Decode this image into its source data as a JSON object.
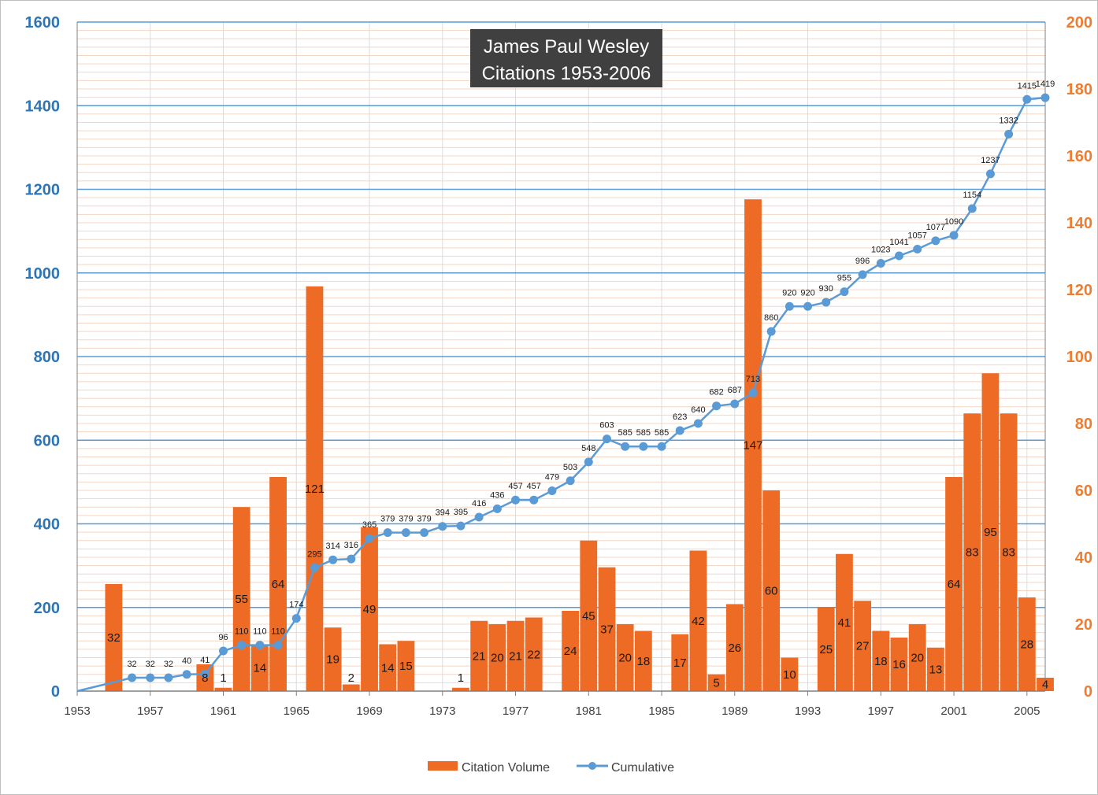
{
  "chart_data": {
    "type": "bar+line",
    "title_lines": [
      "James Paul Wesley",
      "Citations 1953-2006"
    ],
    "x": [
      1953,
      1954,
      1955,
      1956,
      1957,
      1958,
      1959,
      1960,
      1961,
      1962,
      1963,
      1964,
      1965,
      1966,
      1967,
      1968,
      1969,
      1970,
      1971,
      1972,
      1973,
      1974,
      1975,
      1976,
      1977,
      1978,
      1979,
      1980,
      1981,
      1982,
      1983,
      1984,
      1985,
      1986,
      1987,
      1988,
      1989,
      1990,
      1991,
      1992,
      1993,
      1994,
      1995,
      1996,
      1997,
      1998,
      1999,
      2000,
      2001,
      2002,
      2003,
      2004,
      2005,
      2006
    ],
    "xticks": [
      1953,
      1957,
      1961,
      1965,
      1969,
      1973,
      1977,
      1981,
      1985,
      1989,
      1993,
      1997,
      2001,
      2005
    ],
    "left_axis": {
      "ylim": [
        0,
        1600
      ],
      "ticks": [
        0,
        200,
        400,
        600,
        800,
        1000,
        1200,
        1400,
        1600
      ],
      "color": "#2e75b6"
    },
    "right_axis": {
      "ylim": [
        0,
        200
      ],
      "ticks": [
        0,
        20,
        40,
        60,
        80,
        100,
        120,
        140,
        160,
        180,
        200
      ],
      "color": "#ed7d31"
    },
    "grid": true,
    "series": [
      {
        "name": "Citation Volume",
        "kind": "bar",
        "axis": "right",
        "color": "#ed6b25",
        "values": [
          0,
          0,
          32,
          0,
          0,
          0,
          0,
          8,
          1,
          55,
          14,
          64,
          0,
          121,
          19,
          2,
          49,
          14,
          15,
          0,
          0,
          1,
          21,
          20,
          21,
          22,
          0,
          24,
          45,
          37,
          20,
          18,
          0,
          17,
          42,
          5,
          26,
          147,
          60,
          10,
          0,
          25,
          41,
          27,
          18,
          16,
          20,
          13,
          64,
          83,
          95,
          83,
          28,
          4
        ],
        "labels": [
          null,
          null,
          "32",
          null,
          null,
          null,
          null,
          "8",
          "1",
          "55",
          "14",
          "64",
          null,
          "121",
          "19",
          "2",
          "49",
          "14",
          "15",
          null,
          null,
          "1",
          "21",
          "20",
          "21",
          "22",
          null,
          "24",
          "45",
          "37",
          "20",
          "18",
          null,
          "17",
          "42",
          "5",
          "26",
          "147",
          "60",
          "10",
          null,
          "25",
          "41",
          "27",
          "18",
          "16",
          "20",
          "13",
          "64",
          "83",
          "95",
          "83",
          "28",
          "4"
        ]
      },
      {
        "name": "Cumulative",
        "kind": "line",
        "axis": "left",
        "color": "#5b9bd5",
        "values": [
          0,
          null,
          null,
          32,
          32,
          32,
          40,
          41,
          96,
          110,
          110,
          110,
          174,
          295,
          314,
          316,
          365,
          379,
          379,
          379,
          394,
          395,
          416,
          436,
          457,
          457,
          479,
          503,
          548,
          603,
          585,
          585,
          585,
          623,
          640,
          682,
          687,
          713,
          860,
          920,
          920,
          930,
          955,
          996,
          1023,
          1041,
          1057,
          1077,
          1090,
          1154,
          1237,
          1332,
          1415,
          1419
        ],
        "labels": [
          null,
          null,
          null,
          "32",
          "32",
          "32",
          "40",
          "41",
          "96",
          "110",
          "110",
          "110",
          "174",
          "295",
          "314",
          "316",
          "365",
          "379",
          "379",
          "379",
          "394",
          "395",
          "416",
          "436",
          "457",
          "457",
          "479",
          "503",
          "548",
          "603",
          "585",
          "585",
          "585",
          "623",
          "640",
          "682",
          "687",
          "713",
          "860",
          "920",
          "920",
          "930",
          "955",
          "996",
          "1023",
          "1041",
          "1057",
          "1077",
          "1090",
          "1154",
          "1237",
          "1332",
          "1415",
          "1419"
        ]
      }
    ],
    "legend": {
      "placement": "bottom",
      "entries": [
        "Citation Volume",
        "Cumulative"
      ]
    }
  }
}
